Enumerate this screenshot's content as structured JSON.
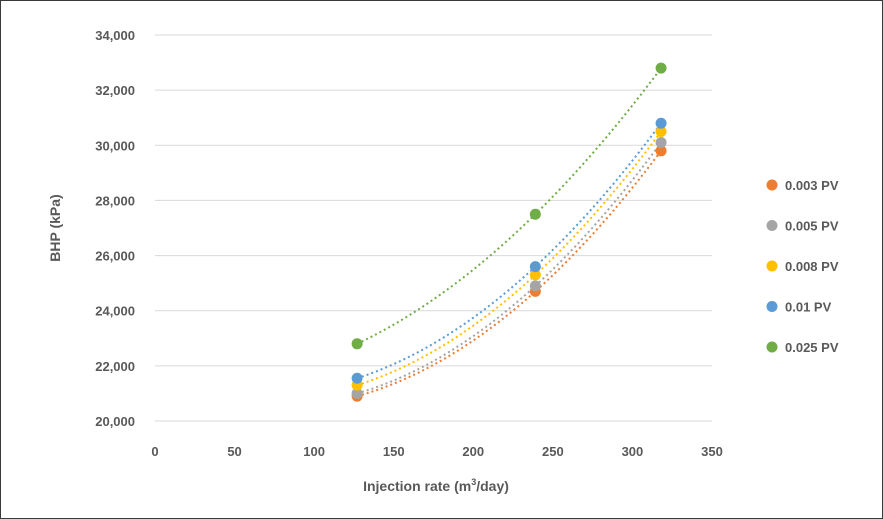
{
  "chart_data": {
    "type": "scatter",
    "title": "",
    "xlabel_main": "Injection rate (m",
    "xlabel_sup": "3",
    "xlabel_end": "/day)",
    "ylabel": "BHP (kPa)",
    "xlim": [
      0,
      350
    ],
    "ylim": [
      20000,
      34000
    ],
    "x_ticks": [
      0,
      50,
      100,
      150,
      200,
      250,
      300,
      350
    ],
    "y_ticks": [
      20000,
      22000,
      24000,
      26000,
      28000,
      30000,
      32000,
      34000
    ],
    "x_tick_labels": [
      "0",
      "50",
      "100",
      "150",
      "200",
      "250",
      "300",
      "350"
    ],
    "y_tick_labels": [
      "20,000",
      "22,000",
      "24,000",
      "26,000",
      "28,000",
      "30,000",
      "32,000",
      "34,000"
    ],
    "grid": "horizontal",
    "legend_position": "right",
    "trendline": "polynomial, dotted",
    "series": [
      {
        "name": "0.003 PV",
        "color": "#ed7d31",
        "x": [
          127,
          239,
          318
        ],
        "y": [
          20900,
          24700,
          29800
        ]
      },
      {
        "name": "0.005 PV",
        "color": "#a5a5a5",
        "x": [
          127,
          239,
          318
        ],
        "y": [
          21000,
          24900,
          30100
        ]
      },
      {
        "name": "0.008 PV",
        "color": "#ffc000",
        "x": [
          127,
          239,
          318
        ],
        "y": [
          21300,
          25300,
          30500
        ]
      },
      {
        "name": "0.01 PV",
        "color": "#5b9bd5",
        "x": [
          127,
          239,
          318
        ],
        "y": [
          21550,
          25600,
          30800
        ]
      },
      {
        "name": "0.025 PV",
        "color": "#70ad47",
        "x": [
          127,
          239,
          318
        ],
        "y": [
          22800,
          27500,
          32800
        ]
      }
    ]
  }
}
